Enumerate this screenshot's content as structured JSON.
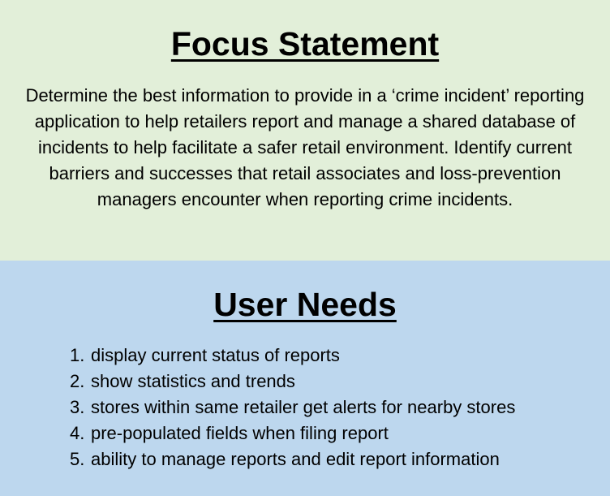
{
  "focus": {
    "title": "Focus Statement",
    "body": "Determine the best information to provide in a ‘crime incident’ reporting application to help retailers report and manage a shared database of incidents to help facilitate a safer retail environment. Identify current barriers and successes that retail associates and loss-prevention managers encounter when reporting crime incidents."
  },
  "needs": {
    "title": "User Needs",
    "items": [
      {
        "number": "1.",
        "text": "display current status of reports"
      },
      {
        "number": "2.",
        "text": "show statistics and trends"
      },
      {
        "number": "3.",
        "text": "stores within same retailer get alerts for nearby stores"
      },
      {
        "number": "4.",
        "text": "pre-populated fields when filing report"
      },
      {
        "number": "5.",
        "text": "ability to manage reports and edit report information"
      }
    ]
  },
  "colors": {
    "focus_background": "#e2efd9",
    "needs_background": "#bdd7ee"
  }
}
